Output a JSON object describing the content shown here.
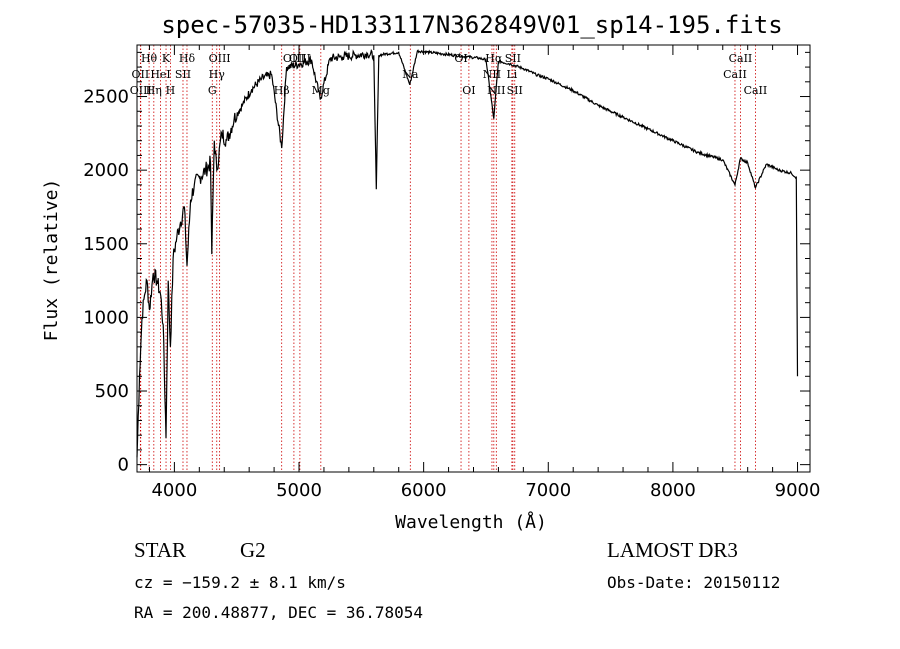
{
  "chart_data": {
    "type": "line",
    "title": "spec-57035-HD133117N362849V01_sp14-195.fits",
    "xlabel": "Wavelength (Å)",
    "ylabel": "Flux (relative)",
    "xlim": [
      3700,
      9100
    ],
    "ylim": [
      -50,
      2850
    ],
    "xticks": [
      4000,
      5000,
      6000,
      7000,
      8000,
      9000
    ],
    "yticks": [
      0,
      500,
      1000,
      1500,
      2000,
      2500
    ],
    "series": [
      {
        "name": "flux",
        "x": [
          3700,
          3720,
          3740,
          3760,
          3780,
          3800,
          3830,
          3860,
          3890,
          3910,
          3933,
          3950,
          3968,
          3990,
          4020,
          4050,
          4080,
          4101,
          4130,
          4160,
          4200,
          4250,
          4290,
          4300,
          4320,
          4340,
          4380,
          4420,
          4480,
          4550,
          4620,
          4700,
          4780,
          4861,
          4900,
          5000,
          5100,
          5170,
          5250,
          5350,
          5450,
          5550,
          5600,
          5620,
          5640,
          5700,
          5800,
          5889,
          5950,
          6050,
          6150,
          6250,
          6350,
          6450,
          6500,
          6563,
          6600,
          6700,
          6800,
          6900,
          7000,
          7200,
          7400,
          7600,
          7800,
          8000,
          8200,
          8400,
          8498,
          8542,
          8600,
          8662,
          8750,
          8850,
          8950,
          8990,
          9000
        ],
        "y": [
          50,
          600,
          1000,
          1150,
          1250,
          1050,
          1300,
          1250,
          1150,
          950,
          180,
          1250,
          800,
          1400,
          1550,
          1650,
          1750,
          1350,
          1800,
          1900,
          1950,
          2000,
          2050,
          1430,
          2200,
          2000,
          2250,
          2200,
          2350,
          2450,
          2550,
          2620,
          2650,
          2150,
          2700,
          2720,
          2750,
          2480,
          2760,
          2770,
          2780,
          2790,
          2780,
          1870,
          2780,
          2790,
          2800,
          2580,
          2810,
          2800,
          2790,
          2780,
          2770,
          2760,
          2750,
          2350,
          2740,
          2720,
          2690,
          2650,
          2620,
          2540,
          2440,
          2360,
          2280,
          2200,
          2120,
          2070,
          1900,
          2080,
          2050,
          1880,
          2040,
          2000,
          1980,
          1950,
          600
        ]
      }
    ],
    "lines": [
      {
        "label": "Hθ",
        "wl": 3797,
        "row": 1
      },
      {
        "label": "OII",
        "wl": 3727,
        "row": 2
      },
      {
        "label": "OIII",
        "wl": 3730,
        "row": 3
      },
      {
        "label": "K",
        "wl": 3933,
        "row": 1
      },
      {
        "label": "HeI",
        "wl": 3889,
        "row": 2
      },
      {
        "label": "Hη",
        "wl": 3835,
        "row": 3
      },
      {
        "label": "H",
        "wl": 3968,
        "row": 3
      },
      {
        "label": "Hδ",
        "wl": 4101,
        "row": 1
      },
      {
        "label": "SII",
        "wl": 4069,
        "row": 2
      },
      {
        "label": "OIII",
        "wl": 4363,
        "row": 1
      },
      {
        "label": "Hγ",
        "wl": 4340,
        "row": 2
      },
      {
        "label": "G",
        "wl": 4304,
        "row": 3
      },
      {
        "label": "Hβ",
        "wl": 4861,
        "row": 3
      },
      {
        "label": "OIII",
        "wl": 5007,
        "row": 1
      },
      {
        "label": "OIII",
        "wl": 4959,
        "row": 1
      },
      {
        "label": "Mg",
        "wl": 5175,
        "row": 3
      },
      {
        "label": "Na",
        "wl": 5893,
        "row": 2
      },
      {
        "label": "OI",
        "wl": 6300,
        "row": 1
      },
      {
        "label": "OI",
        "wl": 6363,
        "row": 3
      },
      {
        "label": "Hα",
        "wl": 6563,
        "row": 1
      },
      {
        "label": "NII",
        "wl": 6548,
        "row": 2
      },
      {
        "label": "NII",
        "wl": 6583,
        "row": 3
      },
      {
        "label": "SII",
        "wl": 6716,
        "row": 1
      },
      {
        "label": "Li",
        "wl": 6708,
        "row": 2
      },
      {
        "label": "SII",
        "wl": 6731,
        "row": 3
      },
      {
        "label": "CaII",
        "wl": 8542,
        "row": 1
      },
      {
        "label": "CaII",
        "wl": 8498,
        "row": 2
      },
      {
        "label": "CaII",
        "wl": 8662,
        "row": 3
      }
    ],
    "colors": {
      "spectrum": "#000000",
      "lines": "#cc0000",
      "axes": "#000000"
    }
  },
  "info": {
    "class": "STAR",
    "subclass": "G2",
    "survey": "LAMOST DR3",
    "cz": "cz = −159.2 ± 8.1 km/s",
    "obs_date": "Obs-Date: 20150112",
    "radec": "RA = 200.48877, DEC =  36.78054"
  }
}
